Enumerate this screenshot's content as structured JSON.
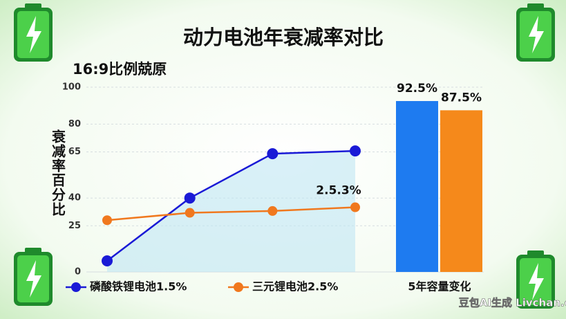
{
  "chart_data": [
    {
      "type": "line",
      "title": "动力电池年衰减率对比",
      "subtitle": "16:9比例兢原",
      "y_label": "衰减率百分比",
      "categories": [
        null,
        null,
        null,
        null
      ],
      "series": [
        {
          "name": "磷酸铁锂电池1.5%",
          "color": "#1a1ad6",
          "values": [
            6,
            40,
            64,
            65.5
          ]
        },
        {
          "name": "三元锂电池2.5%",
          "color": "#f0781e",
          "values": [
            28,
            32,
            33,
            35
          ]
        }
      ],
      "annotation": "2.5.3%",
      "ylim": [
        0,
        100
      ],
      "yticks": [
        100,
        80,
        65,
        40,
        25,
        0
      ],
      "grid": true,
      "area": true
    },
    {
      "type": "bar",
      "categories": [
        "5年容量变化"
      ],
      "series": [
        {
          "color": "#1e7bf0",
          "values": [
            92.5
          ],
          "value_labels": [
            "92.5%"
          ]
        },
        {
          "color": "#f5891b",
          "values": [
            87.5
          ],
          "value_labels": [
            "87.5%"
          ]
        }
      ],
      "ylim": [
        0,
        100
      ]
    }
  ],
  "watermark": "豆包AI生成 Livchan.cn"
}
